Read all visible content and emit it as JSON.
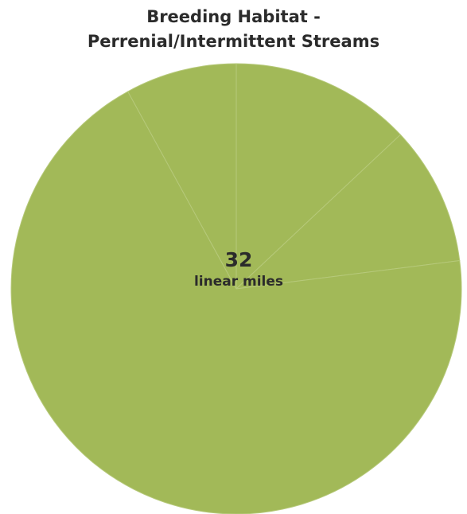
{
  "chart_data": {
    "type": "pie",
    "title_lines": [
      "Breeding Habitat -",
      "Perrenial/Intermittent Streams"
    ],
    "center_value": "32",
    "center_unit": "linear miles",
    "slices": [
      {
        "value": 13
      },
      {
        "value": 10
      },
      {
        "value": 69
      },
      {
        "value": 8
      }
    ],
    "start_angle_deg": 0,
    "direction": "clockwise",
    "color": "#a2b958",
    "edge_color": "#b6c97a"
  }
}
